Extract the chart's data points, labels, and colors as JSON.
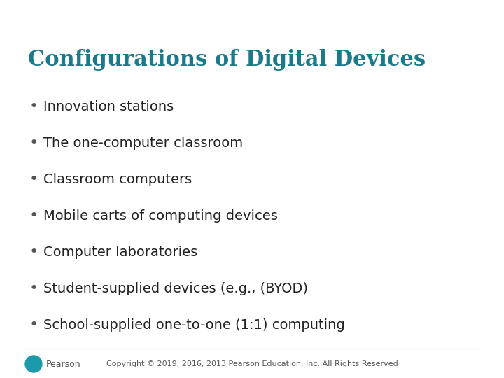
{
  "title": "Configurations of Digital Devices",
  "title_color": "#1a7a8a",
  "title_fontsize": 22,
  "title_bold": true,
  "bullet_items": [
    "Innovation stations",
    "The one-computer classroom",
    "Classroom computers",
    "Mobile carts of computing devices",
    "Computer laboratories",
    "Student-supplied devices (e.g., (BYOD)",
    "School-supplied one-to-one (1:1) computing"
  ],
  "bullet_fontsize": 14,
  "bullet_color": "#222222",
  "bullet_dot_color": "#555555",
  "background_color": "#ffffff",
  "footer_text": "Copyright © 2019, 2016, 2013 Pearson Education, Inc. All Rights Reserved",
  "footer_fontsize": 8,
  "footer_color": "#555555",
  "pearson_text": "Pearson",
  "pearson_color": "#555555",
  "pearson_logo_color": "#1a9aaa"
}
